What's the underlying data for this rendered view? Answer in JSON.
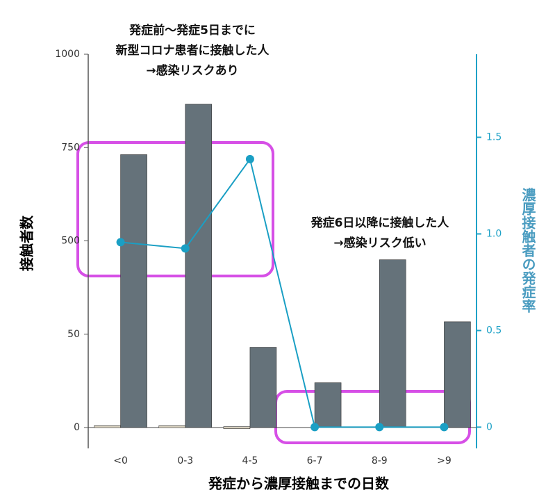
{
  "chart_data": {
    "type": "bar_line",
    "x_label": "発症から濃厚接触までの日数",
    "y_label": "接触者数",
    "y2_label": "濃厚接触者の発症率",
    "categories": [
      "<0",
      "0-3",
      "4-5",
      "6-7",
      "8-9",
      ">9"
    ],
    "series": [
      {
        "type": "bar",
        "color": "#d6cfbd",
        "values": [
          1,
          1,
          0.5,
          0,
          0,
          0
        ]
      },
      {
        "type": "bar",
        "color": "#65727a",
        "values": [
          731,
          866,
          43,
          24,
          409,
          110
        ]
      },
      {
        "type": "line",
        "axis": "y2",
        "color": "#1a9fc4",
        "values": [
          0.957,
          0.925,
          1.387,
          0,
          0,
          0
        ]
      }
    ],
    "ylim": [
      -11,
      1000
    ],
    "yticks": [
      0,
      50,
      500,
      750,
      1000
    ],
    "y2lim": [
      -0.11,
      1.93
    ],
    "y2ticks": [
      0,
      0.5,
      1.0,
      1.5
    ],
    "annotations": [
      [
        "発症前〜発症5日までに",
        "新型コロナ患者に接触した人",
        "→感染リスクあり"
      ],
      [
        "発症6日以降に接触した人",
        "→感染リスク低い"
      ]
    ]
  }
}
